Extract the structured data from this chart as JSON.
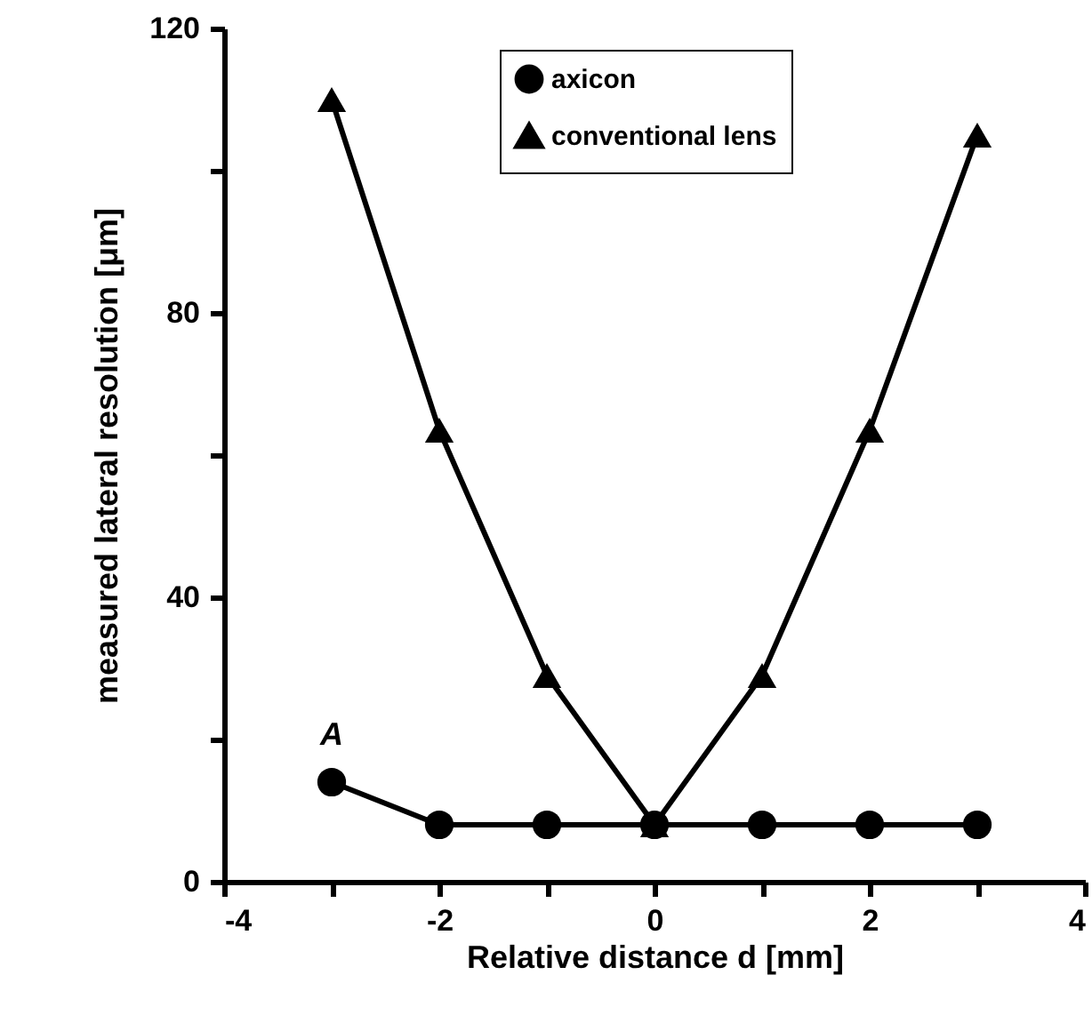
{
  "chart_data": {
    "type": "line",
    "xlabel": "Relative distance  d [mm]",
    "ylabel": "measured lateral resolution [μm]",
    "x": [
      -3,
      -2,
      -1,
      0,
      1,
      2,
      3
    ],
    "series": [
      {
        "name": "axicon",
        "color": "#000000",
        "marker": "circle",
        "values": [
          14,
          8,
          8,
          8,
          8,
          8,
          8
        ]
      },
      {
        "name": "conventional lens",
        "color": "#000000",
        "marker": "triangle",
        "values": [
          110,
          63.5,
          29,
          8,
          29,
          63.5,
          105
        ]
      }
    ],
    "xlim": [
      -4,
      4
    ],
    "ylim": [
      0,
      120
    ],
    "xticks": [
      -4,
      {
        "value": -3,
        "label": null
      },
      -2,
      {
        "value": -1,
        "label": null
      },
      0,
      {
        "value": 1,
        "label": null
      },
      2,
      {
        "value": 3,
        "label": null
      },
      4
    ],
    "yticks": [
      0,
      {
        "value": 20,
        "label": null
      },
      40,
      {
        "value": 60,
        "label": null
      },
      80,
      {
        "value": 100,
        "label": null
      },
      120
    ],
    "annotations": [
      {
        "text": "A",
        "x": -3,
        "y": 14
      }
    ],
    "legend": "top",
    "grid": false,
    "line_style": "solid"
  }
}
